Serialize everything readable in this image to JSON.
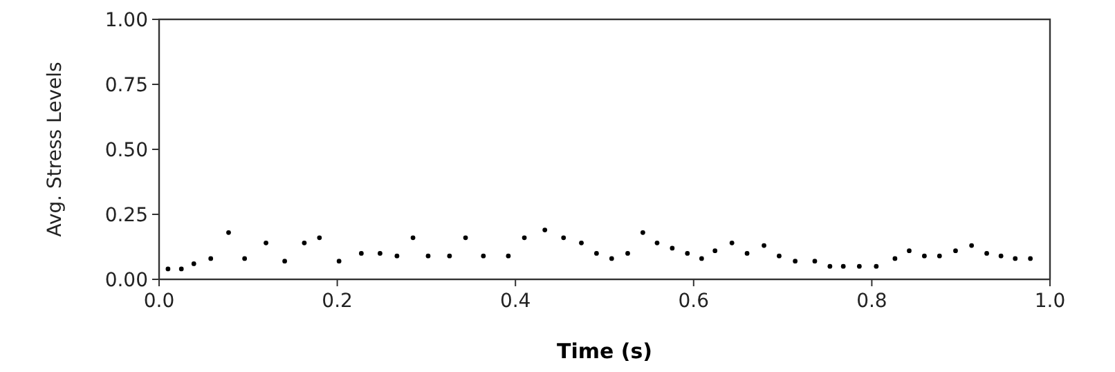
{
  "chart_data": {
    "type": "scatter",
    "xlabel": "Time (s)",
    "ylabel": "Avg. Stress Levels",
    "xlim": [
      0,
      1
    ],
    "ylim": [
      0,
      1
    ],
    "xticks": [
      {
        "value": 0,
        "label": "0.0"
      },
      {
        "value": 0.2,
        "label": "0.2"
      },
      {
        "value": 0.4,
        "label": "0.4"
      },
      {
        "value": 0.6,
        "label": "0.6"
      },
      {
        "value": 0.8,
        "label": "0.8"
      },
      {
        "value": 1,
        "label": "1.0"
      }
    ],
    "yticks": [
      {
        "value": 0,
        "label": "0.00"
      },
      {
        "value": 0.25,
        "label": "0.25"
      },
      {
        "value": 0.5,
        "label": "0.50"
      },
      {
        "value": 0.75,
        "label": "0.75"
      },
      {
        "value": 1,
        "label": "1.00"
      }
    ],
    "grid": false,
    "marker": "circle",
    "series": [
      {
        "color": "#000000",
        "x": [
          0.01,
          0.025,
          0.039,
          0.058,
          0.078,
          0.096,
          0.12,
          0.141,
          0.163,
          0.18,
          0.202,
          0.227,
          0.248,
          0.267,
          0.285,
          0.302,
          0.326,
          0.344,
          0.364,
          0.392,
          0.41,
          0.433,
          0.454,
          0.474,
          0.491,
          0.508,
          0.526,
          0.543,
          0.559,
          0.576,
          0.593,
          0.609,
          0.624,
          0.643,
          0.66,
          0.679,
          0.696,
          0.714,
          0.736,
          0.753,
          0.768,
          0.786,
          0.805,
          0.826,
          0.842,
          0.859,
          0.876,
          0.894,
          0.912,
          0.929,
          0.945,
          0.961,
          0.978
        ],
        "values": [
          0.04,
          0.04,
          0.06,
          0.08,
          0.18,
          0.08,
          0.14,
          0.07,
          0.14,
          0.16,
          0.07,
          0.1,
          0.1,
          0.09,
          0.16,
          0.09,
          0.09,
          0.16,
          0.09,
          0.09,
          0.16,
          0.19,
          0.16,
          0.14,
          0.1,
          0.08,
          0.1,
          0.18,
          0.14,
          0.12,
          0.1,
          0.08,
          0.11,
          0.14,
          0.1,
          0.13,
          0.09,
          0.07,
          0.07,
          0.05,
          0.05,
          0.05,
          0.05,
          0.08,
          0.11,
          0.09,
          0.09,
          0.11,
          0.13,
          0.1,
          0.09,
          0.08,
          0.08
        ]
      }
    ]
  }
}
